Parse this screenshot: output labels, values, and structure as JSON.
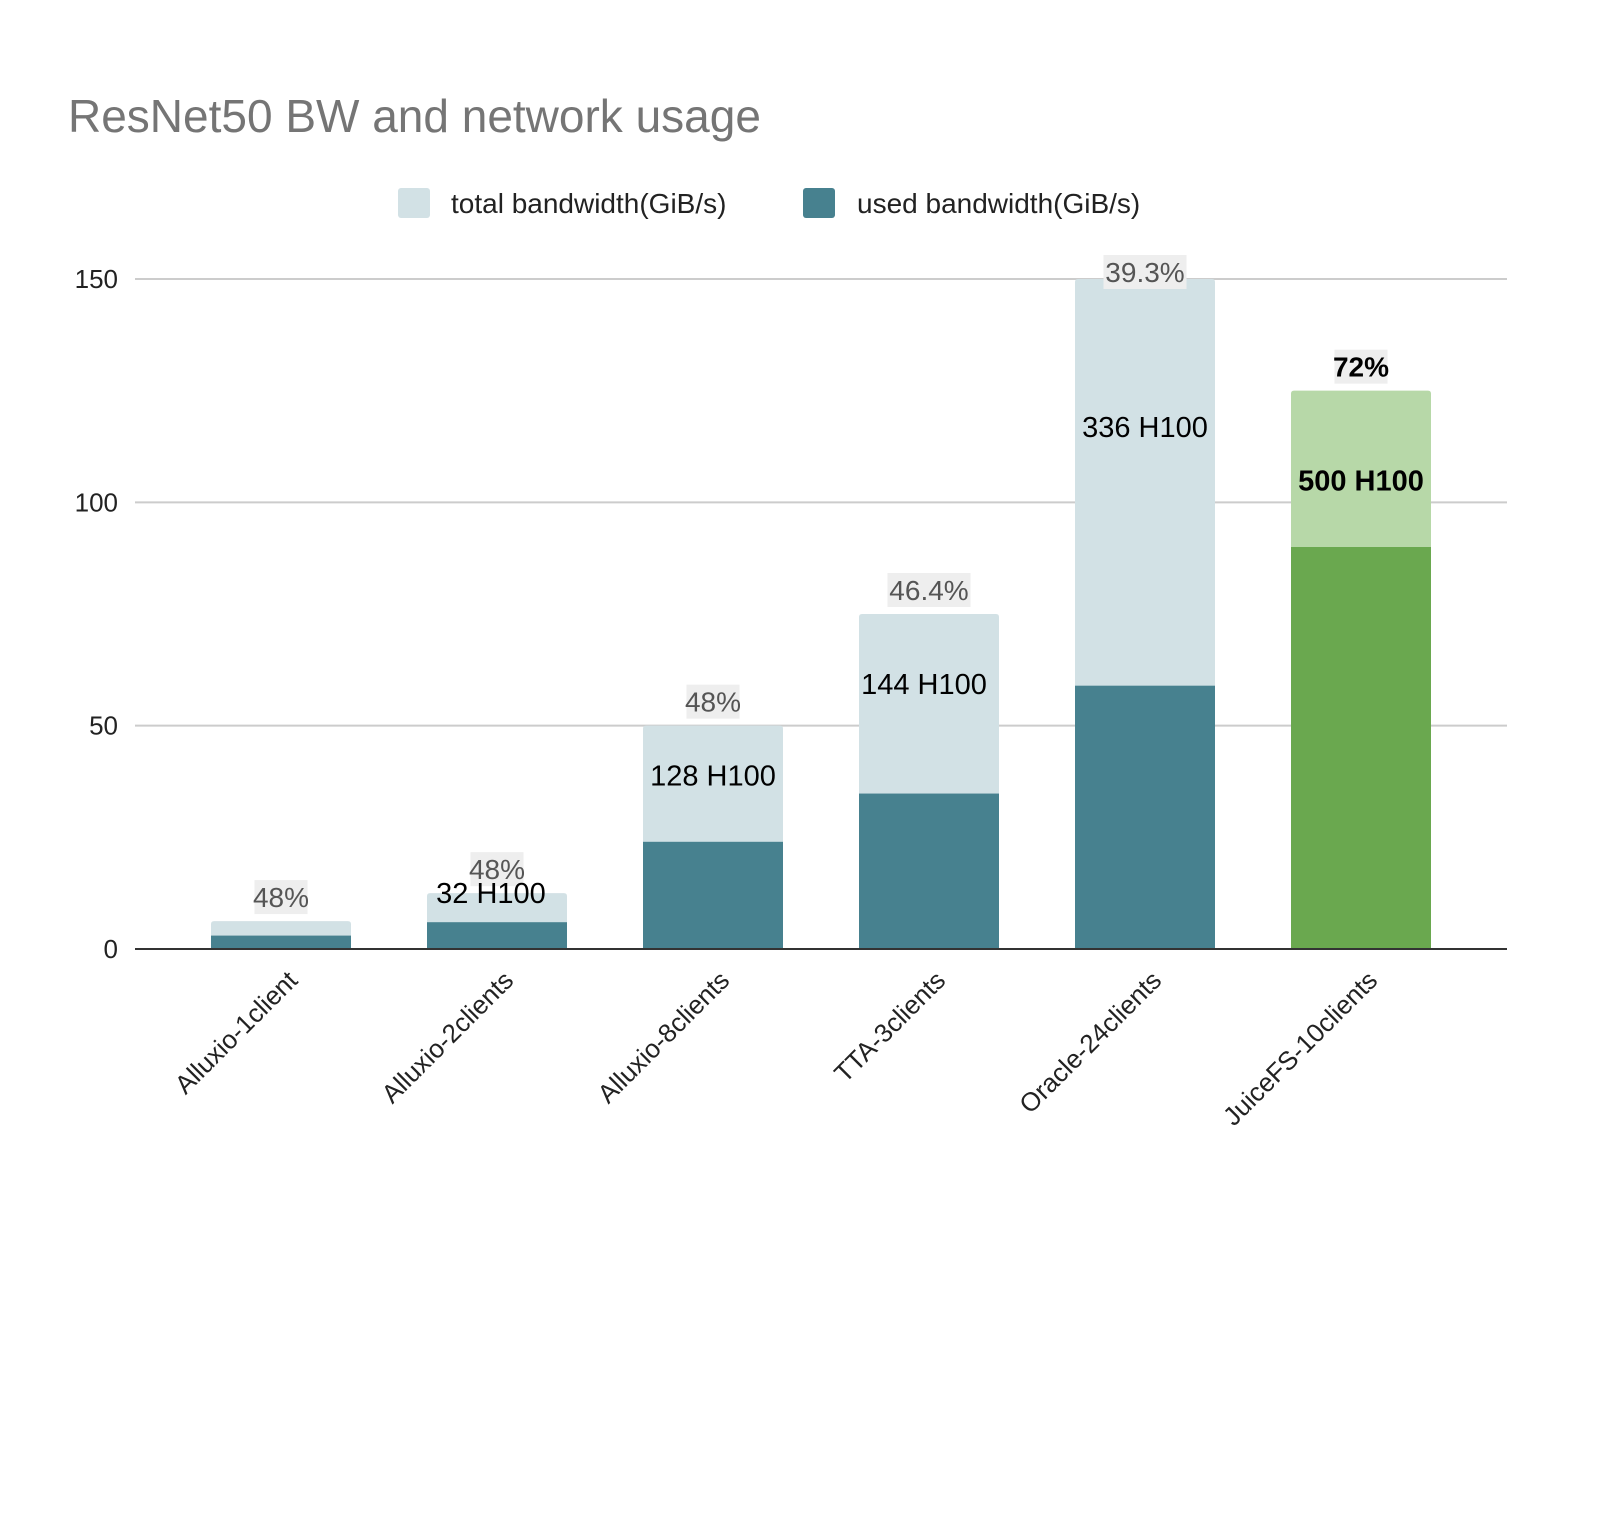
{
  "chart_data": {
    "type": "bar",
    "title": "ResNet50 BW and network usage",
    "xlabel": "",
    "ylabel": "",
    "ylim": [
      0,
      150
    ],
    "yticks": [
      0,
      50,
      100,
      150
    ],
    "grid": true,
    "legend_position": "top-center",
    "categories": [
      "Alluxio-1client",
      "Alluxio-2clients",
      "Alluxio-8clients",
      "TTA-3clients",
      "Oracle-24clients",
      "JuiceFS-10clients"
    ],
    "series": [
      {
        "name": "total bandwidth(GiB/s)",
        "values": [
          6.25,
          12.5,
          50,
          75,
          150,
          125
        ],
        "color": "#d2e1e5"
      },
      {
        "name": "used bandwidth(GiB/s)",
        "values": [
          3,
          6,
          24,
          34.8,
          58.95,
          90
        ],
        "color": "#47818f"
      }
    ],
    "highlight": {
      "category": "JuiceFS-10clients",
      "total_color": "#b7d8a8",
      "used_color": "#6aa84f"
    },
    "percent_labels": [
      "48%",
      "48%",
      "48%",
      "46.4%",
      "39.3%",
      "72%"
    ],
    "gpu_labels": [
      "",
      "32 H100",
      "128 H100",
      "144 H100",
      "336 H100",
      "500 H100"
    ]
  }
}
